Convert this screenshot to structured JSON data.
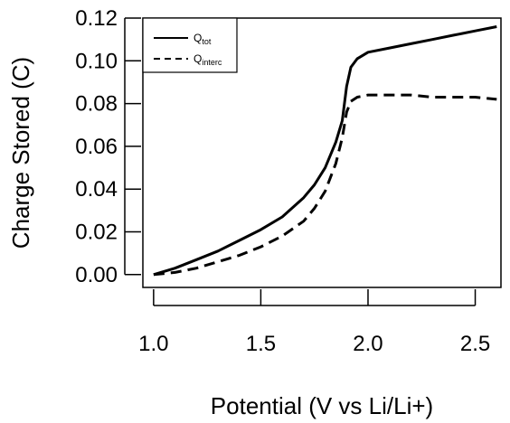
{
  "chart_data": {
    "type": "line",
    "xlabel": "Potential (V vs Li/Li+)",
    "ylabel": "Charge Stored (C)",
    "xlim": [
      0.95,
      2.62
    ],
    "ylim": [
      -0.006,
      0.12
    ],
    "x_ticks": [
      "1.0",
      "1.5",
      "2.0",
      "2.5"
    ],
    "y_ticks": [
      "0.00",
      "0.02",
      "0.04",
      "0.06",
      "0.08",
      "0.10",
      "0.12"
    ],
    "legend_position": "top-left",
    "grid": false,
    "series": [
      {
        "name": "Q",
        "name_sub": "tot",
        "style": "solid",
        "color": "#000000",
        "x": [
          1.0,
          1.1,
          1.2,
          1.3,
          1.4,
          1.5,
          1.6,
          1.7,
          1.75,
          1.8,
          1.85,
          1.88,
          1.9,
          1.92,
          1.95,
          2.0,
          2.1,
          2.2,
          2.3,
          2.4,
          2.5,
          2.6
        ],
        "y": [
          0.0,
          0.003,
          0.007,
          0.011,
          0.016,
          0.021,
          0.027,
          0.036,
          0.042,
          0.05,
          0.062,
          0.072,
          0.088,
          0.097,
          0.101,
          0.104,
          0.106,
          0.108,
          0.11,
          0.112,
          0.114,
          0.116
        ]
      },
      {
        "name": "Q",
        "name_sub": "interc",
        "style": "dashed",
        "color": "#000000",
        "x": [
          1.0,
          1.1,
          1.2,
          1.3,
          1.4,
          1.5,
          1.6,
          1.7,
          1.75,
          1.8,
          1.85,
          1.88,
          1.9,
          1.92,
          1.95,
          2.0,
          2.1,
          2.2,
          2.3,
          2.4,
          2.5,
          2.6
        ],
        "y": [
          0.0,
          0.001,
          0.003,
          0.006,
          0.009,
          0.013,
          0.018,
          0.025,
          0.031,
          0.039,
          0.052,
          0.064,
          0.076,
          0.081,
          0.083,
          0.084,
          0.084,
          0.084,
          0.083,
          0.083,
          0.083,
          0.082
        ]
      }
    ]
  }
}
